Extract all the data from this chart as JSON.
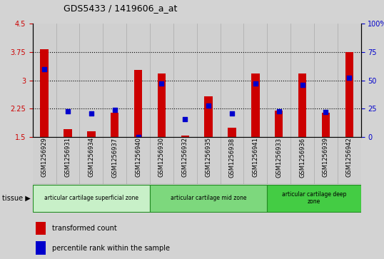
{
  "title": "GDS5433 / 1419606_a_at",
  "samples": [
    "GSM1256929",
    "GSM1256931",
    "GSM1256934",
    "GSM1256937",
    "GSM1256940",
    "GSM1256930",
    "GSM1256932",
    "GSM1256935",
    "GSM1256938",
    "GSM1256941",
    "GSM1256933",
    "GSM1256936",
    "GSM1256939",
    "GSM1256942"
  ],
  "transformed_count": [
    3.82,
    1.72,
    1.65,
    2.15,
    3.28,
    3.18,
    1.55,
    2.58,
    1.75,
    3.18,
    2.2,
    3.18,
    2.15,
    3.75
  ],
  "percentile_rank": [
    60,
    23,
    21,
    24,
    0,
    47,
    16,
    28,
    21,
    47,
    23,
    46,
    22,
    52
  ],
  "ylim_left": [
    1.5,
    4.5
  ],
  "ylim_right": [
    0,
    100
  ],
  "yticks_left": [
    1.5,
    2.25,
    3.0,
    3.75,
    4.5
  ],
  "yticks_right": [
    0,
    25,
    50,
    75,
    100
  ],
  "ytick_labels_left": [
    "1.5",
    "2.25",
    "3",
    "3.75",
    "4.5"
  ],
  "ytick_labels_right": [
    "0",
    "25",
    "50",
    "75",
    "100%"
  ],
  "hlines": [
    2.25,
    3.0,
    3.75
  ],
  "bar_color": "#cc0000",
  "dot_color": "#0000cc",
  "tissue_groups": [
    {
      "label": "articular cartilage superficial zone",
      "start": 0,
      "end": 5
    },
    {
      "label": "articular cartilage mid zone",
      "start": 5,
      "end": 10
    },
    {
      "label": "articular cartilage deep\nzone",
      "start": 10,
      "end": 14
    }
  ],
  "group_colors": [
    "#c8f0c8",
    "#7dd87d",
    "#44cc44"
  ],
  "tissue_label": "tissue",
  "legend_items": [
    {
      "label": "transformed count",
      "color": "#cc0000"
    },
    {
      "label": "percentile rank within the sample",
      "color": "#0000cc"
    }
  ],
  "bg_color": "#d3d3d3",
  "plot_bg_color": "#ffffff",
  "sample_bg_color": "#d0d0d0",
  "bar_width": 0.35,
  "dot_size": 25,
  "tick_fontsize": 7,
  "xlabel_fontsize": 6
}
